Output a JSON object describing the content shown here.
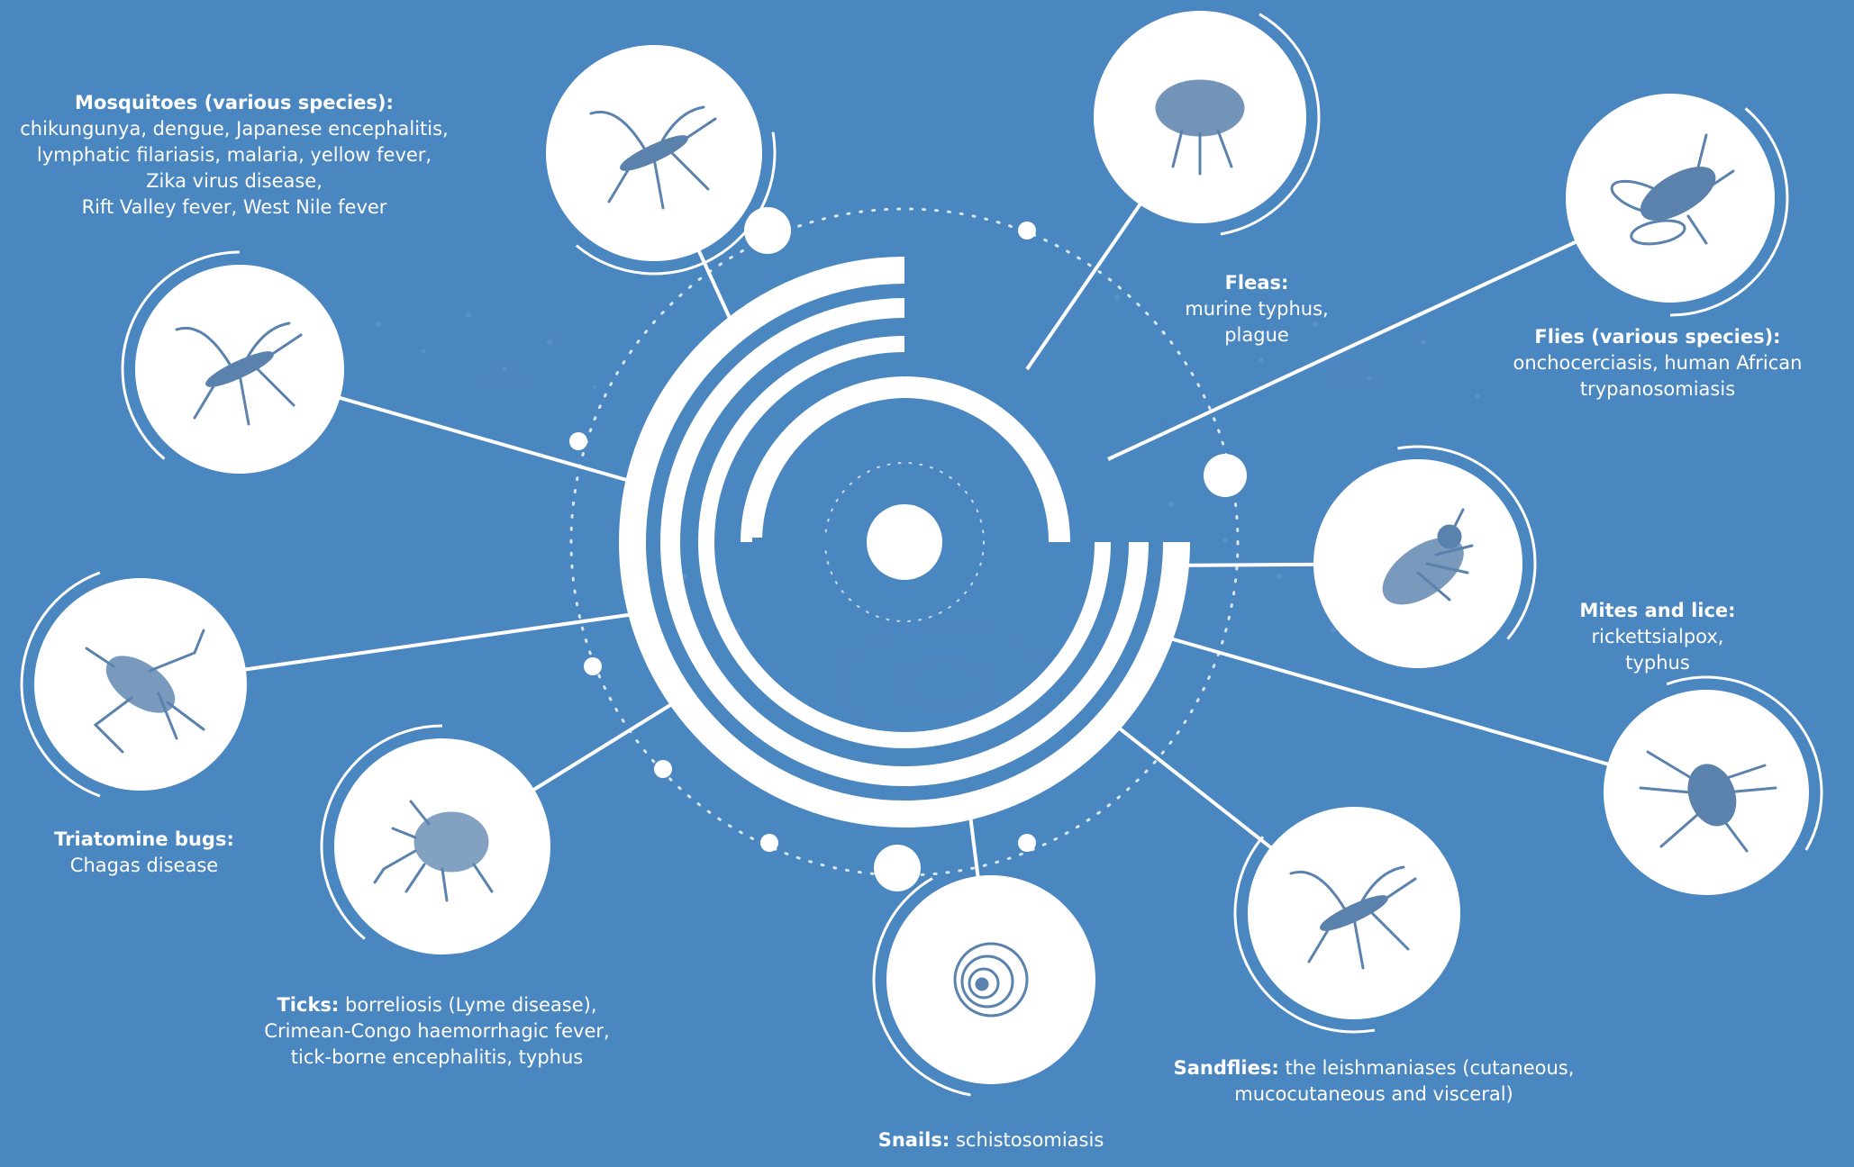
{
  "colors": {
    "background": "#4a86bf",
    "foreground": "#ffffff",
    "icon": "#5a82ad"
  },
  "vectors": [
    {
      "key": "mosquitoes-top",
      "icon": "mosquito-icon",
      "title": "Mosquitoes (various species):",
      "lines": [
        "chikungunya, dengue, Japanese encephalitis,",
        "lymphatic filariasis, malaria, yellow fever,",
        "Zika virus disease,",
        "Rift Valley fever, West Nile fever"
      ]
    },
    {
      "key": "mosquitoes-left",
      "icon": "anopheles-mosquito-icon"
    },
    {
      "key": "fleas",
      "icon": "flea-icon",
      "title": "Fleas:",
      "lines": [
        "murine typhus,",
        "plague"
      ]
    },
    {
      "key": "flies",
      "icon": "fly-icon",
      "title": "Flies (various species):",
      "lines": [
        "onchocerciasis, human African",
        "trypanosomiasis"
      ]
    },
    {
      "key": "mites-lice",
      "icon": "louse-icon",
      "title": "Mites and lice:",
      "lines": [
        "rickettsialpox,",
        "typhus"
      ]
    },
    {
      "key": "mites",
      "icon": "mite-icon"
    },
    {
      "key": "triatomine",
      "icon": "triatomine-bug-icon",
      "title": "Triatomine bugs:",
      "lines": [
        "Chagas disease"
      ]
    },
    {
      "key": "ticks",
      "icon": "tick-icon",
      "title": "Ticks:",
      "lines": [
        "borreliosis (Lyme disease),",
        "Crimean-Congo haemorrhagic fever,",
        "tick-borne encephalitis, typhus"
      ]
    },
    {
      "key": "snails",
      "icon": "snail-icon",
      "title": "Snails:",
      "lines": [
        "schistosomiasis"
      ]
    },
    {
      "key": "sandflies",
      "icon": "sandfly-icon",
      "title": "Sandflies:",
      "lines": [
        "the leishmaniases (cutaneous,",
        "mucocutaneous and visceral)"
      ]
    }
  ]
}
